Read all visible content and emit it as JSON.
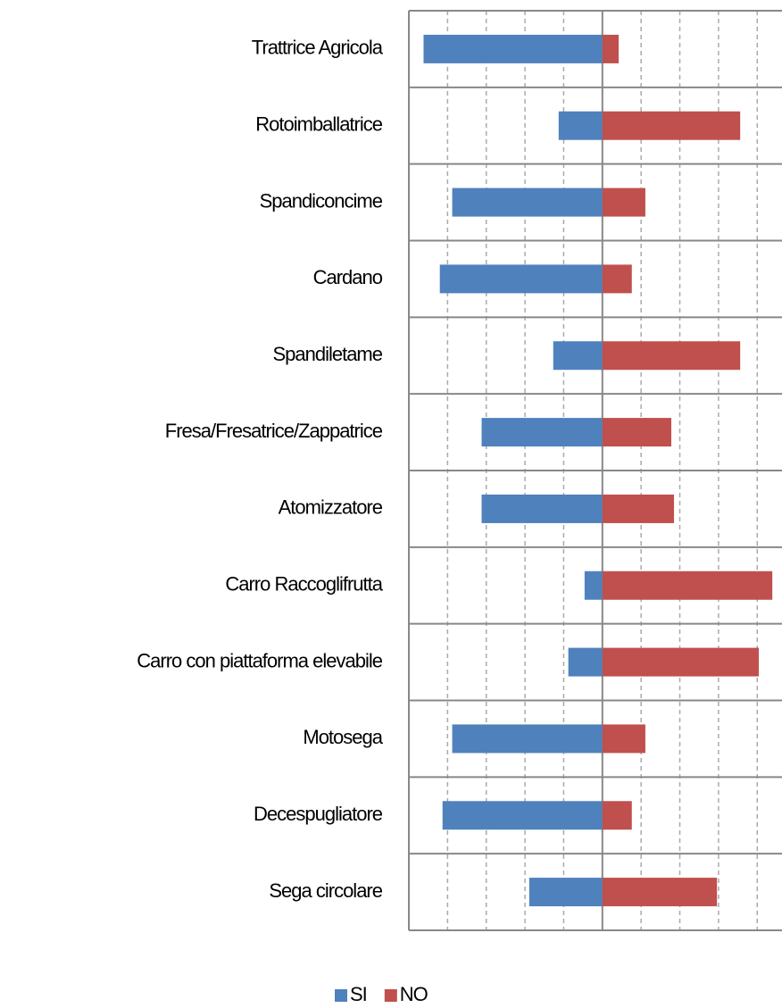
{
  "chart_data": {
    "type": "bar",
    "orientation": "horizontal",
    "stacked": "diverging",
    "categories": [
      "Trattrice Agricola",
      "Rotoimballatrice",
      "Spandiconcime",
      "Cardano",
      "Spandiletame",
      "Fresa/Fresatrice/Zappatrice",
      "Atomizzatore",
      "Carro Raccoglifrutta",
      "Carro con piattaforma elevabile",
      "Motosega",
      "Decespugliatore",
      "Sega circolare"
    ],
    "series": [
      {
        "name": "SI",
        "color": "#4f81bd",
        "values": [
          -46.2,
          -11.3,
          -38.8,
          -42,
          -12.7,
          -31.2,
          -31.2,
          -4.6,
          -8.8,
          -38.8,
          -41.3,
          -18.9
        ]
      },
      {
        "name": "NO",
        "color": "#c0504d",
        "values": [
          4.2,
          35.6,
          11.1,
          7.6,
          35.6,
          17.8,
          18.5,
          43.9,
          40.4,
          11.1,
          7.6,
          29.6
        ]
      }
    ],
    "xlim": [
      -50,
      46.4
    ],
    "xticks": [
      -50,
      -40,
      -30,
      -20,
      -10,
      0,
      10,
      20,
      30,
      40
    ],
    "grid": true,
    "legend": "bottom"
  }
}
